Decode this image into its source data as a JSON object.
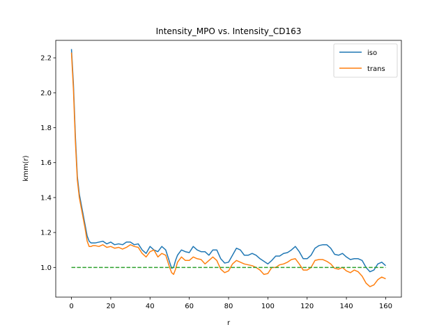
{
  "chart_data": {
    "type": "line",
    "title": "Intensity_MPO vs. Intensity_CD163",
    "xlabel": "r",
    "ylabel": "kmm(r)",
    "xlim": [
      -8,
      168
    ],
    "ylim": [
      0.83,
      2.3
    ],
    "xticks": [
      0,
      20,
      40,
      60,
      80,
      100,
      120,
      140,
      160
    ],
    "xtick_labels": [
      "0",
      "20",
      "40",
      "60",
      "80",
      "100",
      "120",
      "140",
      "160"
    ],
    "yticks": [
      1.0,
      1.2,
      1.4,
      1.6,
      1.8,
      2.0,
      2.2
    ],
    "ytick_labels": [
      "1.0",
      "1.2",
      "1.4",
      "1.6",
      "1.8",
      "2.0",
      "2.2"
    ],
    "grid": false,
    "legend_position": "top-right",
    "series": [
      {
        "name": "iso",
        "color": "#1f77b4",
        "x": [
          0,
          1,
          2,
          3,
          4,
          5,
          6,
          7,
          8,
          9,
          10,
          11,
          12,
          14,
          16,
          18,
          20,
          22,
          24,
          26,
          28,
          30,
          32,
          34,
          36,
          38,
          40,
          42,
          44,
          46,
          48,
          50,
          51,
          52,
          53,
          54,
          56,
          58,
          60,
          62,
          64,
          66,
          68,
          70,
          72,
          74,
          76,
          78,
          80,
          82,
          84,
          86,
          88,
          90,
          92,
          94,
          96,
          98,
          100,
          102,
          104,
          106,
          108,
          110,
          112,
          114,
          116,
          118,
          120,
          122,
          124,
          126,
          128,
          130,
          132,
          134,
          136,
          138,
          140,
          142,
          144,
          146,
          148,
          150,
          152,
          154,
          156,
          158,
          160
        ],
        "y": [
          2.25,
          2.05,
          1.75,
          1.52,
          1.42,
          1.36,
          1.3,
          1.24,
          1.18,
          1.15,
          1.14,
          1.14,
          1.14,
          1.145,
          1.15,
          1.135,
          1.145,
          1.13,
          1.135,
          1.13,
          1.145,
          1.145,
          1.13,
          1.135,
          1.1,
          1.08,
          1.12,
          1.1,
          1.09,
          1.12,
          1.1,
          1.03,
          0.995,
          1.0,
          1.04,
          1.07,
          1.1,
          1.09,
          1.085,
          1.12,
          1.1,
          1.09,
          1.09,
          1.07,
          1.1,
          1.1,
          1.05,
          1.025,
          1.03,
          1.07,
          1.11,
          1.1,
          1.07,
          1.07,
          1.08,
          1.07,
          1.05,
          1.035,
          1.02,
          1.04,
          1.065,
          1.065,
          1.08,
          1.085,
          1.1,
          1.12,
          1.09,
          1.05,
          1.05,
          1.07,
          1.11,
          1.125,
          1.13,
          1.13,
          1.11,
          1.075,
          1.07,
          1.08,
          1.06,
          1.045,
          1.05,
          1.05,
          1.04,
          1.0,
          0.975,
          0.985,
          1.02,
          1.03,
          1.01
        ]
      },
      {
        "name": "trans",
        "color": "#ff7f0e",
        "x": [
          0,
          1,
          2,
          3,
          4,
          5,
          6,
          7,
          8,
          9,
          10,
          11,
          12,
          14,
          16,
          18,
          20,
          22,
          24,
          26,
          28,
          30,
          32,
          34,
          36,
          38,
          40,
          42,
          44,
          46,
          48,
          50,
          51,
          52,
          53,
          54,
          56,
          58,
          60,
          62,
          64,
          66,
          68,
          70,
          72,
          74,
          76,
          78,
          80,
          82,
          84,
          86,
          88,
          90,
          92,
          94,
          96,
          98,
          100,
          102,
          104,
          106,
          108,
          110,
          112,
          114,
          116,
          118,
          120,
          122,
          124,
          126,
          128,
          130,
          132,
          134,
          136,
          138,
          140,
          142,
          144,
          146,
          148,
          150,
          152,
          154,
          156,
          158,
          160
        ],
        "y": [
          2.23,
          2.02,
          1.72,
          1.5,
          1.4,
          1.34,
          1.28,
          1.22,
          1.15,
          1.12,
          1.12,
          1.125,
          1.125,
          1.12,
          1.13,
          1.115,
          1.12,
          1.11,
          1.115,
          1.105,
          1.115,
          1.13,
          1.12,
          1.115,
          1.08,
          1.06,
          1.09,
          1.1,
          1.06,
          1.08,
          1.07,
          1.0,
          0.97,
          0.96,
          0.99,
          1.03,
          1.06,
          1.04,
          1.04,
          1.06,
          1.05,
          1.045,
          1.02,
          1.04,
          1.06,
          1.04,
          0.99,
          0.97,
          0.98,
          1.02,
          1.04,
          1.03,
          1.02,
          1.015,
          1.01,
          1.0,
          0.985,
          0.96,
          0.965,
          1.0,
          1.0,
          1.015,
          1.02,
          1.03,
          1.045,
          1.05,
          1.02,
          0.985,
          0.985,
          1.0,
          1.04,
          1.045,
          1.045,
          1.035,
          1.02,
          0.995,
          0.99,
          1.0,
          0.98,
          0.97,
          0.985,
          0.975,
          0.95,
          0.91,
          0.89,
          0.9,
          0.93,
          0.945,
          0.935
        ]
      },
      {
        "name": "",
        "color": "#2ca02c",
        "dashed": true,
        "x": [
          0,
          160
        ],
        "y": [
          1.0,
          1.0
        ]
      }
    ]
  }
}
